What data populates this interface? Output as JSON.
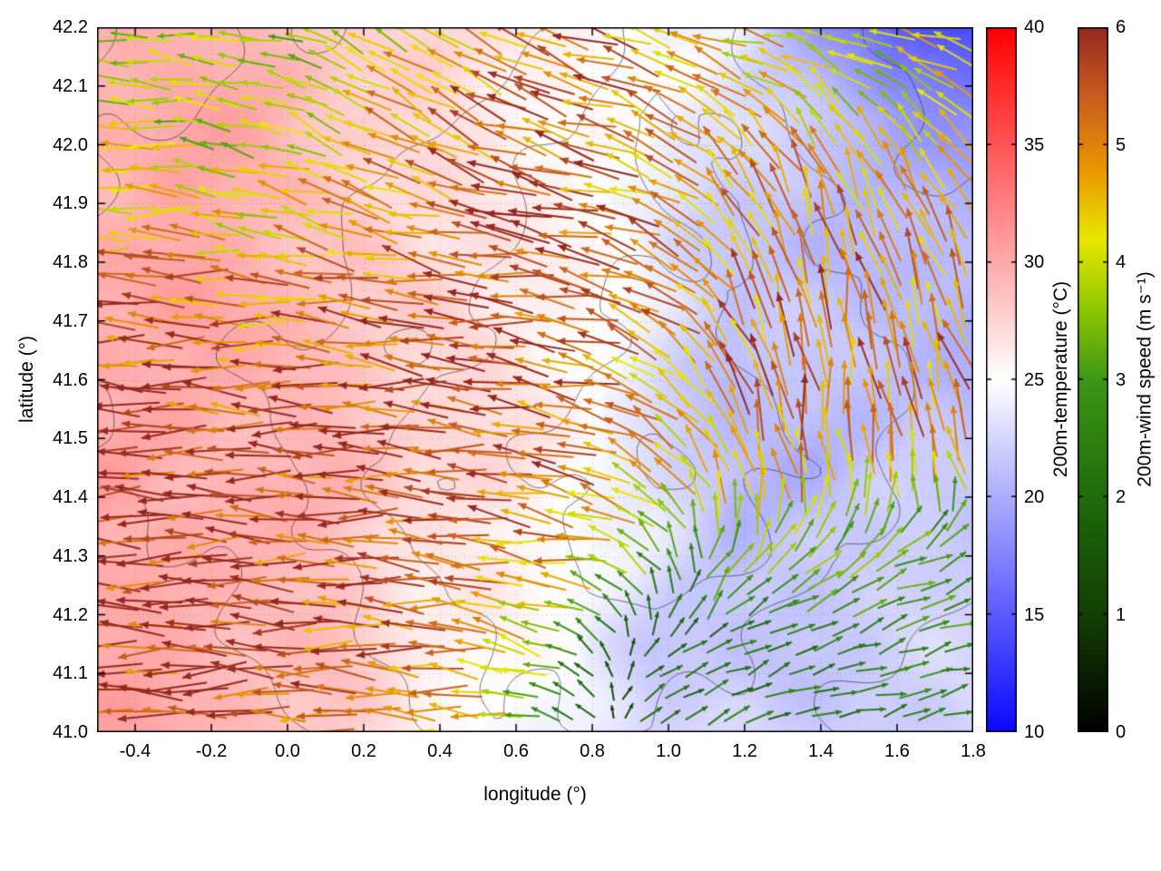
{
  "chart_data": {
    "type": "heatmap",
    "title": "",
    "xlabel": "longitude (°)",
    "ylabel": "latitude (°)",
    "xlim": [
      -0.5,
      1.8
    ],
    "ylim": [
      41.0,
      42.2
    ],
    "grid": "dotted",
    "x_ticks": [
      -0.4,
      -0.2,
      0.0,
      0.2,
      0.4,
      0.6,
      0.8,
      1.0,
      1.2,
      1.4,
      1.6,
      1.8
    ],
    "x_tick_labels": [
      "-0.4",
      "-0.2",
      "0.0",
      "0.2",
      "0.4",
      "0.6",
      "0.8",
      "1.0",
      "1.2",
      "1.4",
      "1.6",
      "1.8"
    ],
    "y_ticks": [
      41.0,
      41.1,
      41.2,
      41.3,
      41.4,
      41.5,
      41.6,
      41.7,
      41.8,
      41.9,
      42.0,
      42.1,
      42.2
    ],
    "y_tick_labels": [
      "41.0",
      "41.1",
      "41.2",
      "41.3",
      "41.4",
      "41.5",
      "41.6",
      "41.7",
      "41.8",
      "41.9",
      "42.0",
      "42.1",
      "42.2"
    ],
    "temperature": {
      "colorbar_label": "200m-temperature (°C)",
      "range": [
        10,
        40
      ],
      "ticks": [
        10,
        15,
        20,
        25,
        30,
        35,
        40
      ],
      "palette": [
        [
          10,
          "#0808ff"
        ],
        [
          25,
          "#ffffff"
        ],
        [
          40,
          "#ff0000"
        ]
      ],
      "lon": [
        -0.5,
        -0.29,
        -0.08,
        0.13,
        0.34,
        0.55,
        0.76,
        0.97,
        1.18,
        1.39,
        1.6,
        1.8
      ],
      "lat": [
        42.2,
        42.05,
        41.9,
        41.75,
        41.6,
        41.45,
        41.3,
        41.15,
        41.0
      ],
      "row_order": "north-to-south",
      "values": [
        [
          29,
          29.5,
          29,
          28,
          27,
          26.5,
          26,
          24.5,
          23.5,
          19,
          15,
          14
        ],
        [
          29.5,
          30,
          29.5,
          28.5,
          27.5,
          26.5,
          25.5,
          24,
          23,
          21.5,
          19.5,
          18.5
        ],
        [
          30,
          30,
          29.5,
          28.5,
          27.5,
          26.5,
          25.5,
          24,
          22,
          20.5,
          21,
          20.5
        ],
        [
          30,
          30,
          29.5,
          29,
          28,
          27,
          25.5,
          23.5,
          21.5,
          21,
          21.5,
          21
        ],
        [
          30.5,
          30,
          29.5,
          29,
          28,
          27,
          25.5,
          23,
          21,
          21.5,
          21,
          20.5
        ],
        [
          30.5,
          30,
          29.5,
          29,
          27.5,
          26.5,
          25.5,
          23.5,
          21,
          20.5,
          21.5,
          21.5
        ],
        [
          30.5,
          30,
          29.5,
          28.5,
          27,
          26,
          25,
          24,
          21,
          21.5,
          22,
          22
        ],
        [
          30,
          30,
          29.5,
          28.5,
          26,
          25,
          24.5,
          22,
          21.5,
          22,
          22,
          22
        ],
        [
          30,
          29.5,
          29,
          28.5,
          25.5,
          24.5,
          24,
          22.5,
          22,
          22,
          22,
          22
        ]
      ]
    },
    "wind": {
      "colorbar_label": "200m-wind speed (m s⁻¹)",
      "range": [
        0,
        6
      ],
      "ticks": [
        0,
        1,
        2,
        3,
        4,
        5,
        6
      ],
      "palette": [
        [
          0,
          "#000000"
        ],
        [
          1,
          "#123f05"
        ],
        [
          2,
          "#1e6b0a"
        ],
        [
          3,
          "#3d9615"
        ],
        [
          3.6,
          "#8fc800"
        ],
        [
          4.2,
          "#e8e800"
        ],
        [
          4.8,
          "#e89500"
        ],
        [
          5.4,
          "#c85f1e"
        ],
        [
          6,
          "#96281e"
        ]
      ],
      "lon": [
        -0.5,
        -0.29,
        -0.08,
        0.13,
        0.34,
        0.55,
        0.76,
        0.97,
        1.18,
        1.39,
        1.6,
        1.8
      ],
      "lat": [
        42.2,
        42.05,
        41.9,
        41.75,
        41.6,
        41.45,
        41.3,
        41.15,
        41.0
      ],
      "row_order": "north-to-south",
      "u": [
        [
          -4.0,
          -3.8,
          -3.5,
          -3.0,
          -3.5,
          -4.5,
          -5.0,
          -5.0,
          -4.5,
          -4.0,
          -4.0,
          -4.2
        ],
        [
          -4.0,
          -3.6,
          -3.4,
          -3.5,
          -4.2,
          -5.0,
          -5.2,
          -4.5,
          -3.5,
          -2.5,
          -2.8,
          -3.5
        ],
        [
          -4.5,
          -4.2,
          -4.0,
          -4.5,
          -5.0,
          -5.5,
          -5.5,
          -4.5,
          -3.0,
          -1.5,
          -1.8,
          -2.5
        ],
        [
          -5.5,
          -5.3,
          -5.0,
          -5.2,
          -5.5,
          -5.8,
          -5.5,
          -4.5,
          -2.5,
          -1.0,
          -1.2,
          -2.0
        ],
        [
          -5.8,
          -5.6,
          -5.5,
          -5.5,
          -5.8,
          -5.8,
          -5.2,
          -4.0,
          -2.0,
          -0.8,
          -1.0,
          -1.5
        ],
        [
          -5.8,
          -5.8,
          -5.6,
          -5.6,
          -5.8,
          -5.6,
          -5.0,
          -3.5,
          -1.5,
          -0.5,
          -0.8,
          -1.2
        ],
        [
          -5.8,
          -5.8,
          -5.6,
          -5.5,
          -5.5,
          -5.2,
          -4.5,
          -2.0,
          2.2,
          2.8,
          3.0,
          3.0
        ],
        [
          -5.8,
          -5.8,
          -5.6,
          -5.4,
          -5.2,
          -4.5,
          -2.0,
          1.5,
          2.0,
          2.2,
          2.4,
          2.5
        ],
        [
          -5.8,
          -5.6,
          -5.5,
          -5.3,
          -5.0,
          -4.0,
          -1.5,
          1.8,
          2.0,
          2.2,
          2.3,
          2.4
        ]
      ],
      "v": [
        [
          0.5,
          0.3,
          0.8,
          1.5,
          2.5,
          2.5,
          2.0,
          1.5,
          1.0,
          0.8,
          0.8,
          1.0
        ],
        [
          0.3,
          0.5,
          1.0,
          2.0,
          2.5,
          2.0,
          1.5,
          2.0,
          3.0,
          3.5,
          3.0,
          2.0
        ],
        [
          0.2,
          0.3,
          0.8,
          1.2,
          1.5,
          1.2,
          1.0,
          2.0,
          4.0,
          5.0,
          4.5,
          4.0
        ],
        [
          0.2,
          0.2,
          0.5,
          0.8,
          1.0,
          0.8,
          1.0,
          2.5,
          4.5,
          5.2,
          5.0,
          4.5
        ],
        [
          0.1,
          0.2,
          0.3,
          0.5,
          0.5,
          0.5,
          1.0,
          2.5,
          4.8,
          5.2,
          5.0,
          4.8
        ],
        [
          0.0,
          0.1,
          0.2,
          0.3,
          0.3,
          0.5,
          1.2,
          2.8,
          4.5,
          4.8,
          4.6,
          4.4
        ],
        [
          0.0,
          0.0,
          0.1,
          0.2,
          0.3,
          0.5,
          1.0,
          2.5,
          2.8,
          2.0,
          1.5,
          1.3
        ],
        [
          0.0,
          0.0,
          0.1,
          0.2,
          0.3,
          0.8,
          1.5,
          1.5,
          1.0,
          0.8,
          0.8,
          0.8
        ],
        [
          0.0,
          0.0,
          0.0,
          0.1,
          0.2,
          0.5,
          1.0,
          1.0,
          0.8,
          0.6,
          0.6,
          0.6
        ]
      ]
    },
    "terrain_contours": {
      "levels": [
        300,
        450,
        600,
        750,
        900
      ],
      "row_order": "north-to-south",
      "values": [
        [
          600,
          500,
          400,
          300,
          350,
          400,
          500,
          700,
          600,
          500,
          400,
          350
        ],
        [
          500,
          450,
          350,
          300,
          400,
          500,
          600,
          800,
          700,
          550,
          450,
          400
        ],
        [
          450,
          400,
          350,
          400,
          500,
          550,
          650,
          750,
          800,
          600,
          500,
          450
        ],
        [
          400,
          350,
          400,
          450,
          550,
          600,
          700,
          800,
          700,
          650,
          550,
          500
        ],
        [
          350,
          400,
          450,
          500,
          600,
          650,
          750,
          850,
          750,
          700,
          600,
          500
        ],
        [
          300,
          350,
          400,
          550,
          650,
          700,
          800,
          900,
          800,
          700,
          600,
          550
        ],
        [
          250,
          300,
          350,
          450,
          600,
          650,
          750,
          850,
          750,
          650,
          550,
          500
        ],
        [
          200,
          250,
          300,
          400,
          500,
          600,
          650,
          700,
          600,
          500,
          450,
          400
        ],
        [
          150,
          200,
          250,
          350,
          450,
          550,
          600,
          550,
          500,
          450,
          400,
          350
        ]
      ]
    }
  }
}
